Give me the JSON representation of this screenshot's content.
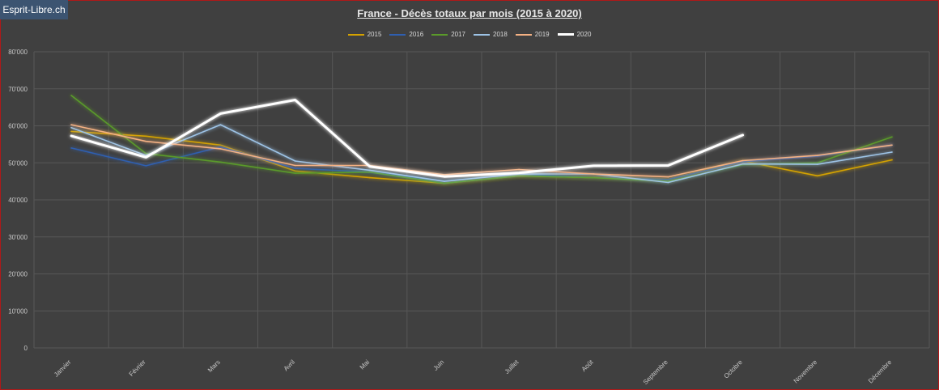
{
  "badge": "Esprit-Libre.ch",
  "chart_data": {
    "type": "line",
    "title": "France - Décès totaux par mois (2015 à 2020)",
    "categories": [
      "Janvier",
      "Février",
      "Mars",
      "Avril",
      "Mai",
      "Juin",
      "Juillet",
      "Août",
      "Septembre",
      "Octobre",
      "Novembre",
      "Décembre"
    ],
    "ylim": [
      0,
      80000
    ],
    "yticks": [
      0,
      10000,
      20000,
      30000,
      40000,
      50000,
      60000,
      70000,
      80000
    ],
    "ytick_labels": [
      "0",
      "10'000",
      "20'000",
      "30'000",
      "40'000",
      "50'000",
      "60'000",
      "70'000",
      "80'000"
    ],
    "grid": true,
    "legend": "top-center",
    "series": [
      {
        "name": "2015",
        "color": "#d4a200",
        "values": [
          58500,
          57200,
          54800,
          47800,
          46000,
          44500,
          46500,
          46000,
          45500,
          50500,
          46500,
          50800
        ]
      },
      {
        "name": "2016",
        "color": "#2f5fb0",
        "values": [
          54000,
          49200,
          54300,
          48500,
          47500,
          45000,
          47000,
          46000,
          45500,
          50300,
          51800,
          54800
        ]
      },
      {
        "name": "2017",
        "color": "#5a9a2a",
        "values": [
          68200,
          52500,
          50200,
          47200,
          47500,
          44500,
          46500,
          46000,
          45000,
          49500,
          50000,
          57000
        ]
      },
      {
        "name": "2018",
        "color": "#9dc3e6",
        "values": [
          59500,
          52000,
          60300,
          50500,
          48000,
          45000,
          47000,
          47000,
          44700,
          49700,
          49600,
          52900
        ]
      },
      {
        "name": "2019",
        "color": "#f4b183",
        "values": [
          60300,
          55800,
          53800,
          49300,
          49300,
          46800,
          48200,
          47000,
          46200,
          50600,
          52000,
          54800
        ]
      },
      {
        "name": "2020",
        "color": "#ffffff",
        "values": [
          57300,
          51500,
          63300,
          67000,
          49000,
          46300,
          47300,
          49200,
          49300,
          57500,
          null,
          null
        ]
      }
    ]
  }
}
